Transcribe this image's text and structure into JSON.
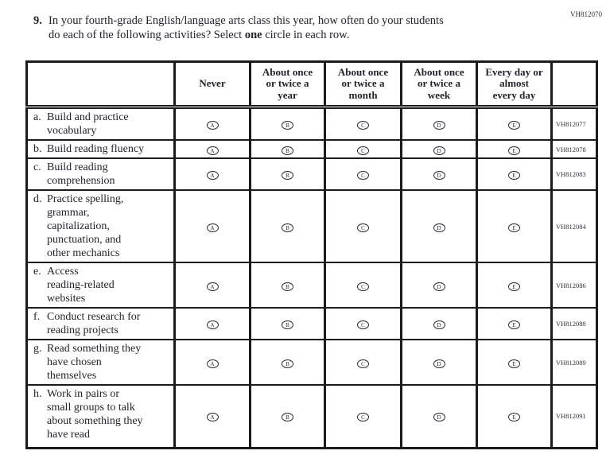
{
  "page": {
    "top_right_code": "VH812070"
  },
  "colors": {
    "ink": "#23232b",
    "border": "#1b1b1b"
  },
  "question": {
    "number": "9.",
    "line1": "In your fourth-grade English/language arts class this year, how often do your students",
    "line2_pre": "do each of the following activities? Select ",
    "line2_bold": "one",
    "line2_post": " circle in each row."
  },
  "table": {
    "header": {
      "options": [
        {
          "lines": [
            "Never"
          ]
        },
        {
          "lines": [
            "About once",
            "or twice a",
            "year"
          ]
        },
        {
          "lines": [
            "About once",
            "or twice a",
            "month"
          ]
        },
        {
          "lines": [
            "About once",
            "or twice a",
            "week"
          ]
        },
        {
          "lines": [
            "Every day or",
            "almost",
            "every day"
          ]
        }
      ]
    },
    "bubble_letters": [
      "A",
      "B",
      "C",
      "D",
      "E"
    ],
    "rows": [
      {
        "letter": "a.",
        "lines": [
          "Build and practice",
          "vocabulary"
        ],
        "code": "VH812077"
      },
      {
        "letter": "b.",
        "lines": [
          "Build reading fluency"
        ],
        "code": "VH812078"
      },
      {
        "letter": "c.",
        "lines": [
          "Build reading",
          "comprehension"
        ],
        "code": "VH812083"
      },
      {
        "letter": "d.",
        "lines": [
          "Practice spelling,",
          "grammar,",
          "capitalization,",
          "punctuation, and",
          "other mechanics"
        ],
        "code": "VH812084"
      },
      {
        "letter": "e.",
        "lines": [
          "Access",
          "reading-related",
          "websites"
        ],
        "code": "VH812086"
      },
      {
        "letter": "f.",
        "lines": [
          "Conduct research for",
          "reading projects"
        ],
        "code": "VH812088"
      },
      {
        "letter": "g.",
        "lines": [
          "Read something they",
          "have chosen",
          "themselves"
        ],
        "code": "VH812089"
      },
      {
        "letter": "h.",
        "lines": [
          "Work in pairs or",
          "small groups to talk",
          "about something they",
          "have read"
        ],
        "code": "VH812091"
      }
    ]
  }
}
